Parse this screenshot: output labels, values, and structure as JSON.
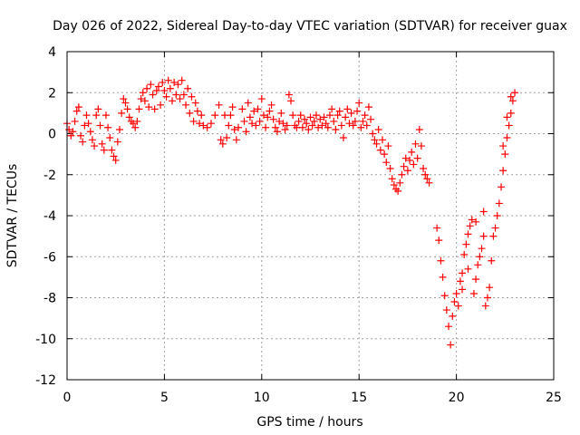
{
  "chart_data": {
    "type": "scatter",
    "title": "Day 026 of 2022, Sidereal Day-to-day VTEC variation (SDTVAR) for receiver guax",
    "xlabel": "GPS time / hours",
    "ylabel": "SDTVAR / TECUs",
    "xlim": [
      0,
      25
    ],
    "ylim": [
      -12,
      4
    ],
    "x_ticks": [
      0,
      5,
      10,
      15,
      20,
      25
    ],
    "y_ticks": [
      -12,
      -10,
      -8,
      -6,
      -4,
      -2,
      0,
      2,
      4
    ],
    "grid": true,
    "marker": "+",
    "color": "#ff0000",
    "series": [
      {
        "name": "SDTVAR",
        "points": [
          [
            0.0,
            0.5
          ],
          [
            0.1,
            0.2
          ],
          [
            0.2,
            -0.1
          ],
          [
            0.3,
            0.1
          ],
          [
            0.4,
            0.6
          ],
          [
            0.5,
            1.1
          ],
          [
            0.6,
            1.3
          ],
          [
            0.7,
            -0.1
          ],
          [
            0.8,
            -0.4
          ],
          [
            0.9,
            0.4
          ],
          [
            1.0,
            0.9
          ],
          [
            1.1,
            0.5
          ],
          [
            1.2,
            0.1
          ],
          [
            1.3,
            -0.3
          ],
          [
            1.4,
            -0.6
          ],
          [
            1.5,
            0.9
          ],
          [
            1.6,
            1.2
          ],
          [
            1.7,
            0.4
          ],
          [
            1.8,
            -0.5
          ],
          [
            1.9,
            -0.8
          ],
          [
            2.0,
            0.9
          ],
          [
            2.1,
            0.3
          ],
          [
            2.2,
            -0.2
          ],
          [
            2.3,
            -0.8
          ],
          [
            2.4,
            -1.1
          ],
          [
            2.5,
            -1.3
          ],
          [
            2.6,
            -0.4
          ],
          [
            2.7,
            0.2
          ],
          [
            2.8,
            1.0
          ],
          [
            2.9,
            1.7
          ],
          [
            3.0,
            1.5
          ],
          [
            3.1,
            1.2
          ],
          [
            3.2,
            0.8
          ],
          [
            3.3,
            0.6
          ],
          [
            3.4,
            0.5
          ],
          [
            3.5,
            0.3
          ],
          [
            3.6,
            0.6
          ],
          [
            3.7,
            1.2
          ],
          [
            3.8,
            1.7
          ],
          [
            3.9,
            2.0
          ],
          [
            4.0,
            1.6
          ],
          [
            4.1,
            2.2
          ],
          [
            4.2,
            1.3
          ],
          [
            4.3,
            2.4
          ],
          [
            4.4,
            1.9
          ],
          [
            4.5,
            1.2
          ],
          [
            4.6,
            2.1
          ],
          [
            4.7,
            2.3
          ],
          [
            4.8,
            1.4
          ],
          [
            4.9,
            2.5
          ],
          [
            5.0,
            2.1
          ],
          [
            5.1,
            1.8
          ],
          [
            5.2,
            2.6
          ],
          [
            5.3,
            2.2
          ],
          [
            5.4,
            1.6
          ],
          [
            5.5,
            2.5
          ],
          [
            5.6,
            1.9
          ],
          [
            5.7,
            2.4
          ],
          [
            5.8,
            1.7
          ],
          [
            5.9,
            2.6
          ],
          [
            6.0,
            1.9
          ],
          [
            6.1,
            1.4
          ],
          [
            6.2,
            2.2
          ],
          [
            6.3,
            1.0
          ],
          [
            6.4,
            1.8
          ],
          [
            6.5,
            0.6
          ],
          [
            6.6,
            1.5
          ],
          [
            6.7,
            1.1
          ],
          [
            6.8,
            0.5
          ],
          [
            6.9,
            0.9
          ],
          [
            7.0,
            0.4
          ],
          [
            7.2,
            0.3
          ],
          [
            7.4,
            0.5
          ],
          [
            7.6,
            0.9
          ],
          [
            7.8,
            1.4
          ],
          [
            7.9,
            -0.3
          ],
          [
            8.0,
            -0.5
          ],
          [
            8.1,
            0.9
          ],
          [
            8.2,
            -0.2
          ],
          [
            8.3,
            0.4
          ],
          [
            8.4,
            0.9
          ],
          [
            8.5,
            1.3
          ],
          [
            8.6,
            0.2
          ],
          [
            8.7,
            -0.3
          ],
          [
            8.8,
            0.3
          ],
          [
            9.0,
            1.2
          ],
          [
            9.1,
            0.6
          ],
          [
            9.2,
            0.1
          ],
          [
            9.3,
            1.5
          ],
          [
            9.4,
            0.8
          ],
          [
            9.5,
            0.5
          ],
          [
            9.6,
            1.1
          ],
          [
            9.7,
            0.4
          ],
          [
            9.8,
            1.2
          ],
          [
            9.9,
            0.6
          ],
          [
            10.0,
            1.7
          ],
          [
            10.1,
            0.9
          ],
          [
            10.2,
            0.3
          ],
          [
            10.3,
            0.8
          ],
          [
            10.4,
            1.1
          ],
          [
            10.5,
            1.4
          ],
          [
            10.6,
            0.7
          ],
          [
            10.7,
            0.3
          ],
          [
            10.8,
            0.1
          ],
          [
            10.9,
            0.6
          ],
          [
            11.0,
            1.0
          ],
          [
            11.1,
            0.5
          ],
          [
            11.2,
            0.2
          ],
          [
            11.3,
            0.4
          ],
          [
            11.4,
            1.9
          ],
          [
            11.5,
            1.6
          ],
          [
            11.6,
            0.9
          ],
          [
            11.7,
            0.4
          ],
          [
            11.8,
            0.3
          ],
          [
            11.9,
            0.6
          ],
          [
            12.0,
            0.9
          ],
          [
            12.1,
            0.3
          ],
          [
            12.2,
            0.7
          ],
          [
            12.3,
            0.5
          ],
          [
            12.4,
            0.2
          ],
          [
            12.5,
            0.8
          ],
          [
            12.6,
            0.4
          ],
          [
            12.7,
            0.6
          ],
          [
            12.8,
            0.9
          ],
          [
            12.9,
            0.3
          ],
          [
            13.0,
            0.7
          ],
          [
            13.1,
            0.4
          ],
          [
            13.2,
            0.8
          ],
          [
            13.3,
            0.5
          ],
          [
            13.4,
            0.3
          ],
          [
            13.5,
            0.9
          ],
          [
            13.6,
            1.2
          ],
          [
            13.7,
            0.6
          ],
          [
            13.8,
            0.2
          ],
          [
            13.9,
            0.9
          ],
          [
            14.0,
            1.1
          ],
          [
            14.1,
            0.4
          ],
          [
            14.2,
            -0.2
          ],
          [
            14.3,
            0.8
          ],
          [
            14.4,
            1.2
          ],
          [
            14.5,
            0.5
          ],
          [
            14.6,
            1.0
          ],
          [
            14.7,
            0.4
          ],
          [
            14.8,
            0.6
          ],
          [
            14.9,
            1.1
          ],
          [
            15.0,
            1.5
          ],
          [
            15.1,
            0.3
          ],
          [
            15.2,
            0.6
          ],
          [
            15.3,
            0.9
          ],
          [
            15.4,
            0.4
          ],
          [
            15.5,
            1.3
          ],
          [
            15.6,
            0.7
          ],
          [
            15.7,
            0.0
          ],
          [
            15.8,
            -0.3
          ],
          [
            15.9,
            -0.5
          ],
          [
            16.0,
            0.2
          ],
          [
            16.1,
            -0.8
          ],
          [
            16.2,
            -0.3
          ],
          [
            16.3,
            -1.0
          ],
          [
            16.4,
            -1.4
          ],
          [
            16.5,
            -0.6
          ],
          [
            16.6,
            -1.7
          ],
          [
            16.7,
            -2.2
          ],
          [
            16.8,
            -2.5
          ],
          [
            16.9,
            -2.7
          ],
          [
            17.0,
            -2.8
          ],
          [
            17.1,
            -2.4
          ],
          [
            17.2,
            -2.0
          ],
          [
            17.3,
            -1.6
          ],
          [
            17.4,
            -1.2
          ],
          [
            17.5,
            -1.8
          ],
          [
            17.6,
            -1.3
          ],
          [
            17.7,
            -0.9
          ],
          [
            17.8,
            -1.5
          ],
          [
            17.9,
            -0.5
          ],
          [
            18.0,
            -1.2
          ],
          [
            18.1,
            0.2
          ],
          [
            18.2,
            -0.6
          ],
          [
            18.3,
            -1.7
          ],
          [
            18.4,
            -2.0
          ],
          [
            18.5,
            -2.2
          ],
          [
            18.6,
            -2.4
          ],
          [
            19.0,
            -4.6
          ],
          [
            19.1,
            -5.2
          ],
          [
            19.2,
            -6.2
          ],
          [
            19.3,
            -7.0
          ],
          [
            19.4,
            -7.9
          ],
          [
            19.5,
            -8.6
          ],
          [
            19.6,
            -9.4
          ],
          [
            19.7,
            -10.3
          ],
          [
            19.8,
            -8.9
          ],
          [
            19.9,
            -8.2
          ],
          [
            20.0,
            -7.8
          ],
          [
            20.1,
            -8.4
          ],
          [
            20.2,
            -7.2
          ],
          [
            20.3,
            -6.8
          ],
          [
            20.4,
            -5.9
          ],
          [
            20.5,
            -5.4
          ],
          [
            20.6,
            -4.9
          ],
          [
            20.7,
            -4.5
          ],
          [
            20.8,
            -4.2
          ],
          [
            20.9,
            -7.8
          ],
          [
            21.0,
            -7.1
          ],
          [
            21.1,
            -6.4
          ],
          [
            21.2,
            -6.0
          ],
          [
            21.3,
            -5.6
          ],
          [
            21.4,
            -5.0
          ],
          [
            21.5,
            -8.4
          ],
          [
            21.6,
            -8.0
          ],
          [
            21.7,
            -7.5
          ],
          [
            21.8,
            -6.2
          ],
          [
            21.9,
            -5.0
          ],
          [
            22.0,
            -4.6
          ],
          [
            22.1,
            -4.0
          ],
          [
            22.2,
            -3.4
          ],
          [
            22.3,
            -2.6
          ],
          [
            22.4,
            -1.8
          ],
          [
            22.5,
            -1.0
          ],
          [
            22.6,
            -0.2
          ],
          [
            22.7,
            0.4
          ],
          [
            22.8,
            1.0
          ],
          [
            22.9,
            1.6
          ],
          [
            23.0,
            2.0
          ],
          [
            22.4,
            -0.6
          ],
          [
            22.6,
            0.8
          ],
          [
            22.8,
            1.8
          ],
          [
            21.0,
            -4.3
          ],
          [
            21.4,
            -3.8
          ],
          [
            20.6,
            -6.6
          ],
          [
            20.3,
            -7.6
          ]
        ]
      }
    ]
  }
}
